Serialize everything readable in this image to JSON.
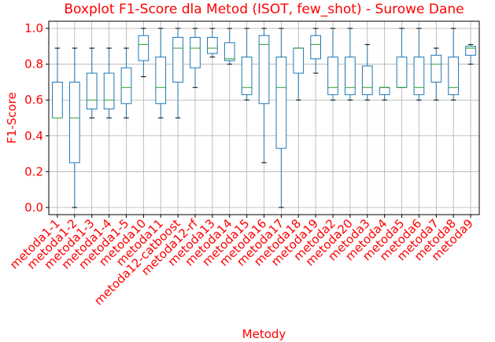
{
  "chart_data": {
    "type": "boxplot",
    "title": "Boxplot F1-Score dla Metod (ISOT, few_shot) - Surowe Dane",
    "xlabel": "Metody",
    "ylabel": "F1-Score",
    "ylim": [
      -0.04,
      1.04
    ],
    "yticks": [
      0.0,
      0.2,
      0.4,
      0.6,
      0.8,
      1.0
    ],
    "ytick_labels": [
      "0.0",
      "0.2",
      "0.4",
      "0.6",
      "0.8",
      "1.0"
    ],
    "grid": true,
    "colors": {
      "title": "#ff0000",
      "labels": "#ff0000",
      "box": "#1f77b4",
      "median": "#2ca02c",
      "whisker": "#1f77b4",
      "grid": "#b0b0b0"
    },
    "categories": [
      "metoda1-1",
      "metoda1-2",
      "metoda1-3",
      "metoda1-4",
      "metoda1-5",
      "metoda10",
      "metoda11",
      "metoda12-catboost",
      "metoda12-rf",
      "metoda13",
      "metoda14",
      "metoda15",
      "metoda16",
      "metoda17",
      "metoda18",
      "metoda19",
      "metoda2",
      "metoda20",
      "metoda3",
      "metoda4",
      "metoda5",
      "metoda6",
      "metoda7",
      "metoda8",
      "metoda9"
    ],
    "boxes": [
      {
        "whislo": 0.5,
        "q1": 0.5,
        "med": 0.5,
        "q3": 0.7,
        "whishi": 0.89
      },
      {
        "whislo": 0.0,
        "q1": 0.25,
        "med": 0.5,
        "q3": 0.7,
        "whishi": 0.89
      },
      {
        "whislo": 0.5,
        "q1": 0.55,
        "med": 0.6,
        "q3": 0.75,
        "whishi": 0.89
      },
      {
        "whislo": 0.5,
        "q1": 0.55,
        "med": 0.6,
        "q3": 0.75,
        "whishi": 0.89
      },
      {
        "whislo": 0.5,
        "q1": 0.58,
        "med": 0.67,
        "q3": 0.78,
        "whishi": 0.89
      },
      {
        "whislo": 0.73,
        "q1": 0.82,
        "med": 0.91,
        "q3": 0.96,
        "whishi": 1.0
      },
      {
        "whislo": 0.5,
        "q1": 0.58,
        "med": 0.67,
        "q3": 0.84,
        "whishi": 1.0
      },
      {
        "whislo": 0.5,
        "q1": 0.7,
        "med": 0.89,
        "q3": 0.95,
        "whishi": 1.0
      },
      {
        "whislo": 0.67,
        "q1": 0.78,
        "med": 0.89,
        "q3": 0.95,
        "whishi": 1.0
      },
      {
        "whislo": 0.84,
        "q1": 0.86,
        "med": 0.89,
        "q3": 0.95,
        "whishi": 1.0
      },
      {
        "whislo": 0.8,
        "q1": 0.82,
        "med": 0.83,
        "q3": 0.92,
        "whishi": 1.0
      },
      {
        "whislo": 0.6,
        "q1": 0.63,
        "med": 0.67,
        "q3": 0.84,
        "whishi": 1.0
      },
      {
        "whislo": 0.25,
        "q1": 0.58,
        "med": 0.91,
        "q3": 0.96,
        "whishi": 1.0
      },
      {
        "whislo": 0.0,
        "q1": 0.33,
        "med": 0.67,
        "q3": 0.84,
        "whishi": 1.0
      },
      {
        "whislo": 0.6,
        "q1": 0.75,
        "med": 0.89,
        "q3": 0.89,
        "whishi": 0.89
      },
      {
        "whislo": 0.75,
        "q1": 0.83,
        "med": 0.91,
        "q3": 0.96,
        "whishi": 1.0
      },
      {
        "whislo": 0.6,
        "q1": 0.63,
        "med": 0.67,
        "q3": 0.84,
        "whishi": 1.0
      },
      {
        "whislo": 0.6,
        "q1": 0.63,
        "med": 0.67,
        "q3": 0.84,
        "whishi": 1.0
      },
      {
        "whislo": 0.6,
        "q1": 0.63,
        "med": 0.67,
        "q3": 0.79,
        "whishi": 0.91
      },
      {
        "whislo": 0.6,
        "q1": 0.63,
        "med": 0.67,
        "q3": 0.67,
        "whishi": 0.67
      },
      {
        "whislo": 0.67,
        "q1": 0.67,
        "med": 0.67,
        "q3": 0.84,
        "whishi": 1.0
      },
      {
        "whislo": 0.6,
        "q1": 0.63,
        "med": 0.67,
        "q3": 0.84,
        "whishi": 1.0
      },
      {
        "whislo": 0.6,
        "q1": 0.7,
        "med": 0.8,
        "q3": 0.85,
        "whishi": 0.89
      },
      {
        "whislo": 0.6,
        "q1": 0.63,
        "med": 0.67,
        "q3": 0.84,
        "whishi": 1.0
      },
      {
        "whislo": 0.8,
        "q1": 0.85,
        "med": 0.89,
        "q3": 0.9,
        "whishi": 0.91
      }
    ]
  }
}
